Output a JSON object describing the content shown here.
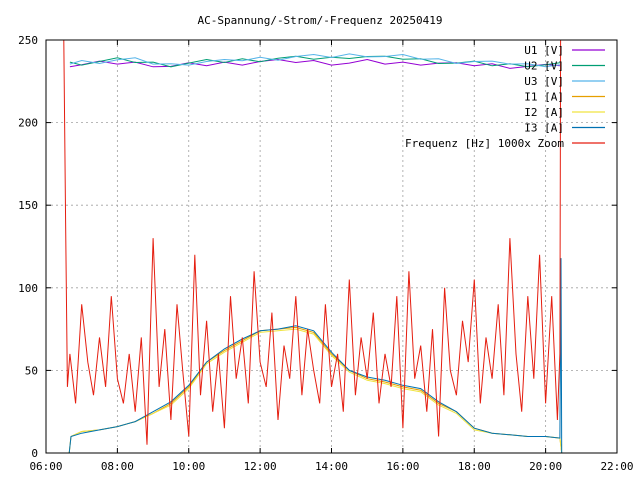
{
  "chart_data": {
    "type": "line",
    "title": "AC-Spannung/-Strom/-Frequenz 20250419",
    "xlabel": "",
    "ylabel": "",
    "xlim": [
      6,
      22
    ],
    "ylim": [
      0,
      250
    ],
    "grid": true,
    "legend_position": "top-right",
    "x_ticks": [
      "06:00",
      "08:00",
      "10:00",
      "12:00",
      "14:00",
      "16:00",
      "18:00",
      "20:00",
      "22:00"
    ],
    "y_ticks": [
      "0",
      "50",
      "100",
      "150",
      "200",
      "250"
    ],
    "series": [
      {
        "name": "U1 [V]",
        "color": "#9400d3",
        "x": [
          6.67,
          7,
          7.5,
          8,
          8.5,
          9,
          9.5,
          10,
          10.5,
          11,
          11.5,
          12,
          12.5,
          13,
          13.5,
          14,
          14.5,
          15,
          15.5,
          16,
          16.5,
          17,
          17.5,
          18,
          18.5,
          19,
          19.5,
          20,
          20.4
        ],
        "y": [
          235,
          235,
          236,
          236,
          236,
          235,
          234,
          235,
          235,
          236,
          236,
          237,
          237,
          237,
          237,
          236,
          236,
          237,
          236,
          236,
          236,
          236,
          235,
          235,
          235,
          234,
          234,
          234,
          235
        ]
      },
      {
        "name": "U2 [V]",
        "color": "#009e73",
        "x": [
          6.67,
          7,
          7.5,
          8,
          8.5,
          9,
          9.5,
          10,
          10.5,
          11,
          11.5,
          12,
          12.5,
          13,
          13.5,
          14,
          14.5,
          15,
          15.5,
          16,
          16.5,
          17,
          17.5,
          18,
          18.5,
          19,
          19.5,
          20,
          20.4
        ],
        "y": [
          236,
          236,
          237,
          238,
          237,
          236,
          235,
          236,
          237,
          237,
          238,
          238,
          239,
          239,
          239,
          239,
          240,
          240,
          239,
          239,
          238,
          237,
          236,
          236,
          235,
          235,
          235,
          235,
          235
        ]
      },
      {
        "name": "U3 [V]",
        "color": "#56b4e9",
        "x": [
          6.67,
          7,
          7.5,
          8,
          8.5,
          9,
          9.5,
          10,
          10.5,
          11,
          11.5,
          12,
          12.5,
          13,
          13.5,
          14,
          14.5,
          15,
          15.5,
          16,
          16.5,
          17,
          17.5,
          18,
          18.5,
          19,
          19.5,
          20,
          20.4
        ],
        "y": [
          236,
          237,
          237,
          238,
          238,
          236,
          235,
          236,
          237,
          237,
          238,
          239,
          239,
          240,
          240,
          240,
          241,
          241,
          240,
          240,
          239,
          238,
          237,
          237,
          236,
          236,
          235,
          235,
          235
        ]
      },
      {
        "name": "I1 [A]",
        "color": "#e69f00",
        "x": [
          6.65,
          6.7,
          7,
          7.5,
          8,
          8.5,
          9,
          9.5,
          10,
          10.5,
          11,
          11.5,
          12,
          12.5,
          13,
          13.5,
          14,
          14.5,
          15,
          15.5,
          16,
          16.5,
          17,
          17.5,
          18,
          18.5,
          19,
          19.5,
          20,
          20.4,
          20.45
        ],
        "y": [
          0,
          10,
          13,
          14,
          16,
          19,
          24,
          30,
          40,
          55,
          62,
          68,
          74,
          75,
          76,
          73,
          60,
          50,
          45,
          43,
          40,
          38,
          30,
          25,
          15,
          12,
          11,
          10,
          10,
          9,
          0
        ]
      },
      {
        "name": "I2 [A]",
        "color": "#f0e442",
        "x": [
          6.65,
          6.7,
          7,
          7.5,
          8,
          8.5,
          9,
          9.5,
          10,
          10.5,
          11,
          11.5,
          12,
          12.5,
          13,
          13.5,
          14,
          14.5,
          15,
          15.5,
          16,
          16.5,
          17,
          17.5,
          18,
          18.5,
          19,
          19.5,
          20,
          20.4,
          20.45
        ],
        "y": [
          0,
          10,
          13,
          14,
          16,
          19,
          24,
          29,
          39,
          54,
          61,
          67,
          73,
          74,
          75,
          72,
          59,
          49,
          44,
          42,
          39,
          37,
          29,
          24,
          14,
          12,
          11,
          10,
          10,
          9,
          0
        ]
      },
      {
        "name": "I3 [A]",
        "color": "#0072b2",
        "x": [
          6.65,
          6.7,
          7,
          7.5,
          8,
          8.5,
          9,
          9.5,
          10,
          10.5,
          11,
          11.5,
          12,
          12.5,
          13,
          13.5,
          14,
          14.5,
          15,
          15.5,
          16,
          16.5,
          17,
          17.5,
          18,
          18.5,
          19,
          19.5,
          20,
          20.4,
          20.43,
          20.45
        ],
        "y": [
          0,
          10,
          12,
          14,
          16,
          19,
          25,
          31,
          41,
          55,
          63,
          69,
          74,
          75,
          77,
          74,
          61,
          50,
          46,
          44,
          41,
          39,
          31,
          25,
          15,
          12,
          11,
          10,
          10,
          9,
          118,
          0
        ]
      },
      {
        "name": "Frequenz [Hz] 1000x Zoom",
        "color": "#e51e10",
        "x": [
          6.5,
          6.55,
          6.6,
          6.67,
          6.83,
          7,
          7.17,
          7.33,
          7.5,
          7.67,
          7.83,
          8,
          8.17,
          8.33,
          8.5,
          8.67,
          8.83,
          9,
          9.17,
          9.33,
          9.5,
          9.67,
          9.83,
          10,
          10.17,
          10.33,
          10.5,
          10.67,
          10.83,
          11,
          11.17,
          11.33,
          11.5,
          11.67,
          11.83,
          12,
          12.17,
          12.33,
          12.5,
          12.67,
          12.83,
          13,
          13.17,
          13.33,
          13.5,
          13.67,
          13.83,
          14,
          14.17,
          14.33,
          14.5,
          14.67,
          14.83,
          15,
          15.17,
          15.33,
          15.5,
          15.67,
          15.83,
          16,
          16.17,
          16.33,
          16.5,
          16.67,
          16.83,
          17,
          17.17,
          17.33,
          17.5,
          17.67,
          17.83,
          18,
          18.17,
          18.33,
          18.5,
          18.67,
          18.83,
          19,
          19.17,
          19.33,
          19.5,
          19.67,
          19.83,
          20,
          20.17,
          20.33,
          20.4,
          20.42
        ],
        "y": [
          250,
          140,
          40,
          60,
          30,
          90,
          55,
          35,
          70,
          40,
          95,
          45,
          30,
          60,
          25,
          70,
          5,
          130,
          40,
          75,
          20,
          90,
          50,
          10,
          120,
          35,
          80,
          25,
          60,
          15,
          95,
          45,
          70,
          30,
          110,
          55,
          40,
          85,
          20,
          65,
          45,
          95,
          35,
          75,
          50,
          30,
          90,
          40,
          60,
          25,
          105,
          35,
          70,
          45,
          85,
          30,
          60,
          40,
          95,
          15,
          110,
          45,
          65,
          25,
          75,
          10,
          100,
          50,
          35,
          80,
          55,
          105,
          30,
          70,
          45,
          90,
          35,
          130,
          60,
          25,
          95,
          45,
          120,
          30,
          95,
          20,
          60,
          250
        ]
      }
    ]
  }
}
